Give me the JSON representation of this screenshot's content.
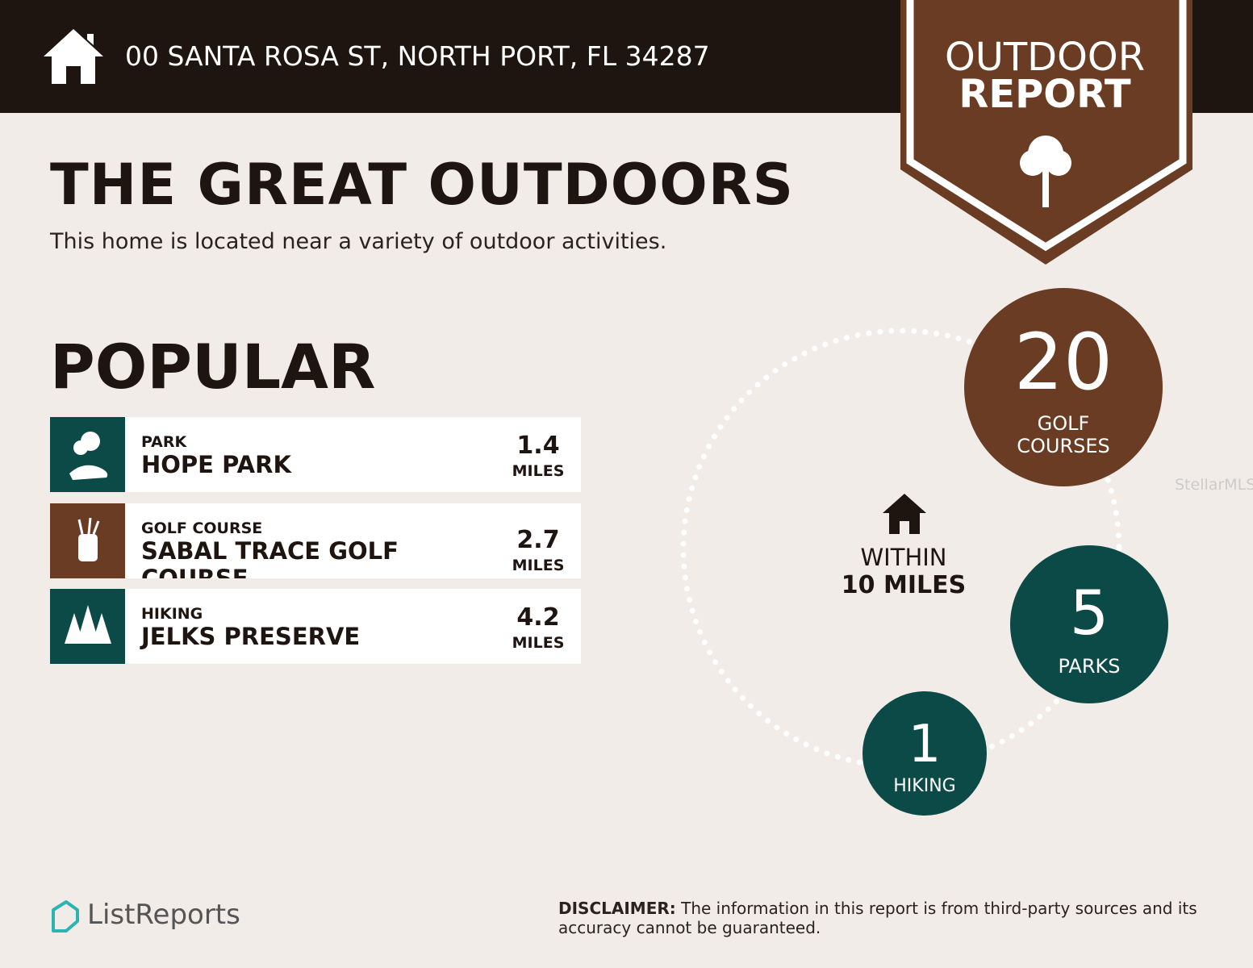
{
  "header": {
    "address": "00 SANTA ROSA ST, NORTH PORT, FL 34287",
    "badge_line1": "OUTDOOR",
    "badge_line2": "REPORT"
  },
  "title": "THE GREAT OUTDOORS",
  "subtitle": "This home is located near a variety of outdoor activities.",
  "popular": {
    "heading": "POPULAR",
    "items": [
      {
        "category": "PARK",
        "name": "HOPE PARK",
        "distance": 1.4,
        "unit": "MILES"
      },
      {
        "category": "GOLF COURSE",
        "name": "SABAL TRACE GOLF COURSE",
        "distance": 2.7,
        "unit": "MILES"
      },
      {
        "category": "HIKING",
        "name": "JELKS PRESERVE",
        "distance": 4.2,
        "unit": "MILES"
      }
    ]
  },
  "radius": {
    "line1": "WITHIN",
    "line2": "10 MILES"
  },
  "counts": [
    {
      "value": 20,
      "label_line1": "GOLF",
      "label_line2": "COURSES"
    },
    {
      "value": 5,
      "label": "PARKS"
    },
    {
      "value": 1,
      "label": "HIKING"
    }
  ],
  "watermark": "StellarMLS",
  "footer": {
    "brand": "ListReports",
    "disclaimer_label": "DISCLAIMER:",
    "disclaimer": "The information in this report is from third-party sources and its accuracy cannot be guaranteed."
  }
}
